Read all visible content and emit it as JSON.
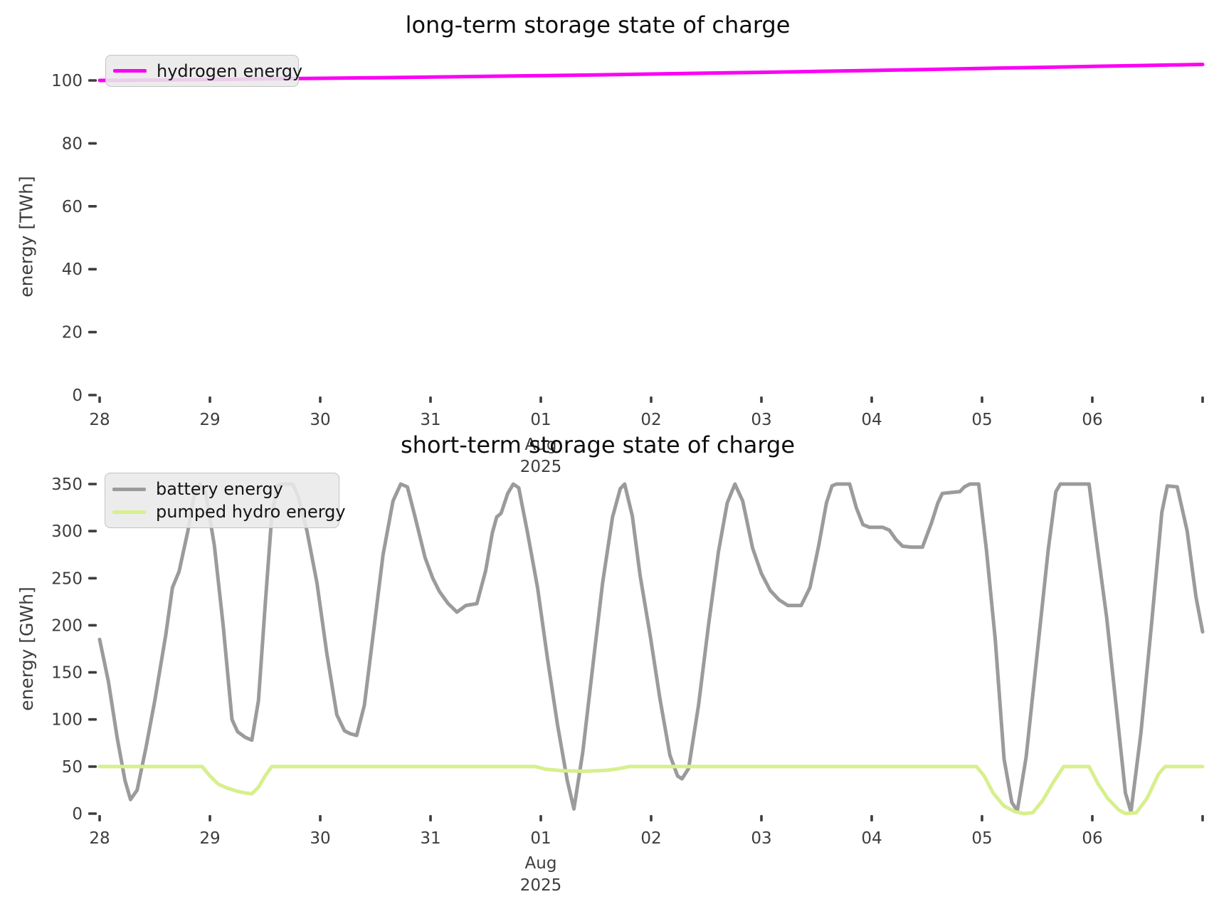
{
  "page": {
    "background": "#ffffff"
  },
  "chart_data": [
    {
      "type": "line",
      "title": "long-term storage state of charge",
      "ylabel": "energy [TWh]",
      "xlabel": "",
      "x_unit": "days since 2025-07-28 (tick labels are day-of-month)",
      "xlim": [
        -0.1,
        10.05
      ],
      "ylim": [
        0,
        110
      ],
      "grid": false,
      "legend_position": "upper left",
      "y_ticks": [
        0,
        20,
        40,
        60,
        80,
        100
      ],
      "x_ticks": [
        {
          "pos": 0,
          "label": "28"
        },
        {
          "pos": 1,
          "label": "29"
        },
        {
          "pos": 2,
          "label": "30"
        },
        {
          "pos": 3,
          "label": "31"
        },
        {
          "pos": 4,
          "label": "01",
          "sublabel": [
            "Aug",
            "2025"
          ]
        },
        {
          "pos": 5,
          "label": "02"
        },
        {
          "pos": 6,
          "label": "03"
        },
        {
          "pos": 7,
          "label": "04"
        },
        {
          "pos": 8,
          "label": "05"
        },
        {
          "pos": 9,
          "label": "06"
        },
        {
          "pos": 10,
          "label": ""
        }
      ],
      "series": [
        {
          "name": "hydrogen energy",
          "color": "#fb00f5",
          "width": 5,
          "points": [
            [
              0,
              100.0
            ],
            [
              0.5,
              100.12
            ],
            [
              1,
              100.3
            ],
            [
              1.5,
              100.48
            ],
            [
              2,
              100.67
            ],
            [
              2.5,
              100.86
            ],
            [
              3,
              101.06
            ],
            [
              3.5,
              101.28
            ],
            [
              4,
              101.52
            ],
            [
              4.5,
              101.77
            ],
            [
              5,
              102.03
            ],
            [
              5.5,
              102.3
            ],
            [
              6,
              102.58
            ],
            [
              6.5,
              102.87
            ],
            [
              7,
              103.17
            ],
            [
              7.5,
              103.49
            ],
            [
              8,
              103.82
            ],
            [
              8.5,
              104.14
            ],
            [
              9,
              104.45
            ],
            [
              9.5,
              104.78
            ],
            [
              10,
              105.1
            ]
          ]
        }
      ]
    },
    {
      "type": "line",
      "title": "short-term storage state of charge",
      "ylabel": "energy [GWh]",
      "xlabel": "",
      "x_unit": "days since 2025-07-28 (tick labels are day-of-month)",
      "xlim": [
        -0.1,
        10.05
      ],
      "ylim": [
        0,
        367
      ],
      "grid": false,
      "legend_position": "upper left",
      "y_ticks": [
        0,
        50,
        100,
        150,
        200,
        250,
        300,
        350
      ],
      "x_ticks": [
        {
          "pos": 0,
          "label": "28"
        },
        {
          "pos": 1,
          "label": "29"
        },
        {
          "pos": 2,
          "label": "30"
        },
        {
          "pos": 3,
          "label": "31"
        },
        {
          "pos": 4,
          "label": "01",
          "sublabel": [
            "Aug",
            "2025"
          ]
        },
        {
          "pos": 5,
          "label": "02"
        },
        {
          "pos": 6,
          "label": "03"
        },
        {
          "pos": 7,
          "label": "04"
        },
        {
          "pos": 8,
          "label": "05"
        },
        {
          "pos": 9,
          "label": "06"
        },
        {
          "pos": 10,
          "label": ""
        }
      ],
      "series": [
        {
          "name": "battery energy",
          "color": "#9b9b9b",
          "width": 5,
          "points": [
            [
              0,
              185
            ],
            [
              0.08,
              140
            ],
            [
              0.16,
              80
            ],
            [
              0.23,
              35
            ],
            [
              0.28,
              15
            ],
            [
              0.34,
              25
            ],
            [
              0.42,
              70
            ],
            [
              0.5,
              120
            ],
            [
              0.6,
              190
            ],
            [
              0.66,
              240
            ],
            [
              0.72,
              257
            ],
            [
              0.8,
              300
            ],
            [
              0.86,
              340
            ],
            [
              0.91,
              350
            ],
            [
              0.96,
              341
            ],
            [
              1.04,
              285
            ],
            [
              1.12,
              200
            ],
            [
              1.2,
              100
            ],
            [
              1.25,
              87
            ],
            [
              1.32,
              81
            ],
            [
              1.38,
              78
            ],
            [
              1.44,
              120
            ],
            [
              1.5,
              220
            ],
            [
              1.56,
              315
            ],
            [
              1.61,
              348
            ],
            [
              1.65,
              350
            ],
            [
              1.75,
              350
            ],
            [
              1.8,
              337
            ],
            [
              1.88,
              300
            ],
            [
              1.97,
              245
            ],
            [
              2.06,
              170
            ],
            [
              2.15,
              105
            ],
            [
              2.22,
              88
            ],
            [
              2.27,
              85
            ],
            [
              2.33,
              83
            ],
            [
              2.4,
              115
            ],
            [
              2.48,
              190
            ],
            [
              2.57,
              275
            ],
            [
              2.66,
              332
            ],
            [
              2.73,
              350
            ],
            [
              2.79,
              347
            ],
            [
              2.86,
              315
            ],
            [
              2.95,
              272
            ],
            [
              3.02,
              250
            ],
            [
              3.08,
              236
            ],
            [
              3.16,
              223
            ],
            [
              3.24,
              214
            ],
            [
              3.32,
              221
            ],
            [
              3.42,
              223
            ],
            [
              3.5,
              258
            ],
            [
              3.56,
              298
            ],
            [
              3.6,
              315
            ],
            [
              3.64,
              319
            ],
            [
              3.7,
              340
            ],
            [
              3.75,
              350
            ],
            [
              3.8,
              346
            ],
            [
              3.88,
              298
            ],
            [
              3.97,
              240
            ],
            [
              4.06,
              165
            ],
            [
              4.15,
              95
            ],
            [
              4.24,
              35
            ],
            [
              4.3,
              5
            ],
            [
              4.38,
              65
            ],
            [
              4.47,
              155
            ],
            [
              4.56,
              245
            ],
            [
              4.65,
              315
            ],
            [
              4.72,
              345
            ],
            [
              4.76,
              350
            ],
            [
              4.83,
              316
            ],
            [
              4.9,
              253
            ],
            [
              4.99,
              190
            ],
            [
              5.08,
              122
            ],
            [
              5.17,
              62
            ],
            [
              5.24,
              40
            ],
            [
              5.28,
              37
            ],
            [
              5.34,
              48
            ],
            [
              5.43,
              115
            ],
            [
              5.52,
              200
            ],
            [
              5.61,
              278
            ],
            [
              5.69,
              330
            ],
            [
              5.76,
              350
            ],
            [
              5.83,
              332
            ],
            [
              5.92,
              282
            ],
            [
              6.0,
              255
            ],
            [
              6.08,
              237
            ],
            [
              6.16,
              227
            ],
            [
              6.24,
              221
            ],
            [
              6.36,
              221
            ],
            [
              6.44,
              240
            ],
            [
              6.52,
              285
            ],
            [
              6.59,
              330
            ],
            [
              6.64,
              348
            ],
            [
              6.68,
              350
            ],
            [
              6.8,
              350
            ],
            [
              6.86,
              325
            ],
            [
              6.92,
              307
            ],
            [
              6.98,
              304
            ],
            [
              7.1,
              304
            ],
            [
              7.16,
              301
            ],
            [
              7.22,
              291
            ],
            [
              7.28,
              284
            ],
            [
              7.36,
              283
            ],
            [
              7.46,
              283
            ],
            [
              7.54,
              308
            ],
            [
              7.6,
              330
            ],
            [
              7.64,
              340
            ],
            [
              7.72,
              341
            ],
            [
              7.8,
              342
            ],
            [
              7.84,
              347
            ],
            [
              7.89,
              350
            ],
            [
              7.97,
              350
            ],
            [
              8.04,
              280
            ],
            [
              8.12,
              185
            ],
            [
              8.2,
              58
            ],
            [
              8.27,
              12
            ],
            [
              8.32,
              3
            ],
            [
              8.4,
              60
            ],
            [
              8.5,
              170
            ],
            [
              8.6,
              280
            ],
            [
              8.67,
              342
            ],
            [
              8.71,
              350
            ],
            [
              8.97,
              350
            ],
            [
              9.05,
              278
            ],
            [
              9.13,
              208
            ],
            [
              9.22,
              110
            ],
            [
              9.3,
              22
            ],
            [
              9.35,
              2
            ],
            [
              9.44,
              85
            ],
            [
              9.54,
              205
            ],
            [
              9.63,
              320
            ],
            [
              9.68,
              348
            ],
            [
              9.77,
              347
            ],
            [
              9.86,
              300
            ],
            [
              9.94,
              230
            ],
            [
              10,
              193
            ]
          ]
        },
        {
          "name": "pumped hydro energy",
          "color": "#d7ef8d",
          "width": 5,
          "points": [
            [
              0,
              50
            ],
            [
              0.93,
              50
            ],
            [
              1.0,
              40
            ],
            [
              1.08,
              31
            ],
            [
              1.16,
              27
            ],
            [
              1.24,
              24
            ],
            [
              1.32,
              22
            ],
            [
              1.38,
              21
            ],
            [
              1.44,
              28
            ],
            [
              1.5,
              40
            ],
            [
              1.56,
              50
            ],
            [
              2.5,
              50
            ],
            [
              3.95,
              50
            ],
            [
              4.05,
              47
            ],
            [
              4.2,
              45.5
            ],
            [
              4.4,
              45
            ],
            [
              4.6,
              46
            ],
            [
              4.72,
              48
            ],
            [
              4.8,
              50
            ],
            [
              6.5,
              50
            ],
            [
              7.95,
              50
            ],
            [
              8.02,
              40
            ],
            [
              8.1,
              22
            ],
            [
              8.2,
              8
            ],
            [
              8.3,
              2
            ],
            [
              8.38,
              0
            ],
            [
              8.46,
              1
            ],
            [
              8.55,
              14
            ],
            [
              8.65,
              34
            ],
            [
              8.74,
              50
            ],
            [
              8.97,
              50
            ],
            [
              9.05,
              32
            ],
            [
              9.14,
              16
            ],
            [
              9.24,
              4
            ],
            [
              9.3,
              0
            ],
            [
              9.4,
              1
            ],
            [
              9.5,
              17
            ],
            [
              9.6,
              42
            ],
            [
              9.66,
              50
            ],
            [
              10,
              50
            ]
          ]
        }
      ]
    }
  ]
}
